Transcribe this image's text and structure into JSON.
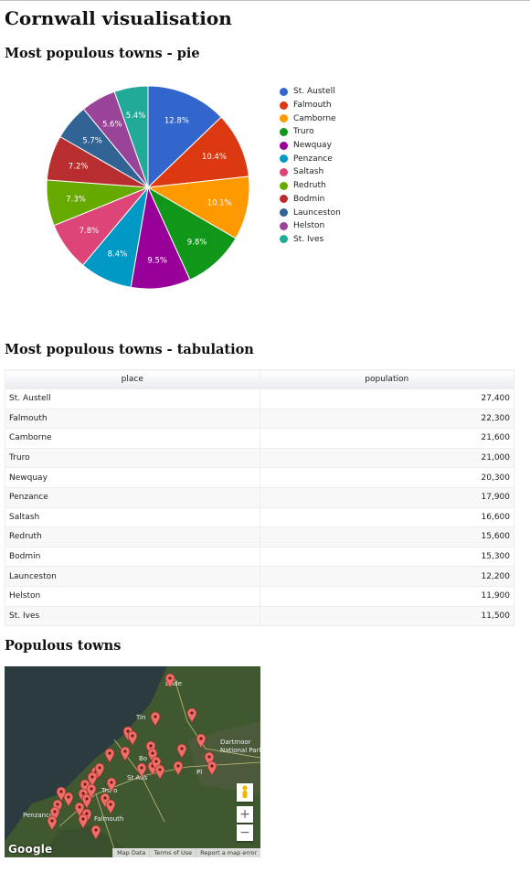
{
  "page": {
    "title": "Cornwall visualisation"
  },
  "pie_section": {
    "heading": "Most populous towns - pie"
  },
  "table_section": {
    "heading": "Most populous towns - tabulation",
    "columns": [
      "place",
      "population"
    ],
    "rows": [
      [
        "St. Austell",
        "27,400"
      ],
      [
        "Falmouth",
        "22,300"
      ],
      [
        "Camborne",
        "21,600"
      ],
      [
        "Truro",
        "21,000"
      ],
      [
        "Newquay",
        "20,300"
      ],
      [
        "Penzance",
        "17,900"
      ],
      [
        "Saltash",
        "16,600"
      ],
      [
        "Redruth",
        "15,600"
      ],
      [
        "Bodmin",
        "15,300"
      ],
      [
        "Launceston",
        "12,200"
      ],
      [
        "Helston",
        "11,900"
      ],
      [
        "St. Ives",
        "11,500"
      ]
    ]
  },
  "map_section": {
    "heading": "Populous towns",
    "logo": "Google",
    "footer": [
      "Map Data",
      "Terms of Use",
      "Report a map error"
    ],
    "zoom_in": "+",
    "zoom_out": "−",
    "place_labels": [
      "Bude",
      "Tin",
      "Dartmoor",
      "National Park",
      "Bo",
      "St Aus",
      "Truro",
      "Falmouth",
      "Penzance",
      "Pl"
    ],
    "colors": {
      "marker": "#ef6e68",
      "land": "#3b4f2c",
      "sea": "#2a3a3f"
    }
  },
  "chart_data": {
    "type": "pie",
    "title": "",
    "slices": [
      {
        "label": "St. Austell",
        "value": 27400,
        "percent": "12.8%",
        "color": "#3366cc"
      },
      {
        "label": "Falmouth",
        "value": 22300,
        "percent": "10.4%",
        "color": "#dc3912"
      },
      {
        "label": "Camborne",
        "value": 21600,
        "percent": "10.1%",
        "color": "#ff9900"
      },
      {
        "label": "Truro",
        "value": 21000,
        "percent": "9.8%",
        "color": "#109618"
      },
      {
        "label": "Newquay",
        "value": 20300,
        "percent": "9.5%",
        "color": "#990099"
      },
      {
        "label": "Penzance",
        "value": 17900,
        "percent": "8.4%",
        "color": "#0099c6"
      },
      {
        "label": "Saltash",
        "value": 16600,
        "percent": "7.8%",
        "color": "#dd4477"
      },
      {
        "label": "Redruth",
        "value": 15600,
        "percent": "7.3%",
        "color": "#66aa00"
      },
      {
        "label": "Bodmin",
        "value": 15300,
        "percent": "7.2%",
        "color": "#b82e2e"
      },
      {
        "label": "Launceston",
        "value": 12200,
        "percent": "5.7%",
        "color": "#316395"
      },
      {
        "label": "Helston",
        "value": 11900,
        "percent": "5.6%",
        "color": "#994499"
      },
      {
        "label": "St. Ives",
        "value": 11500,
        "percent": "5.4%",
        "color": "#22aa99"
      }
    ],
    "legend": "right"
  }
}
